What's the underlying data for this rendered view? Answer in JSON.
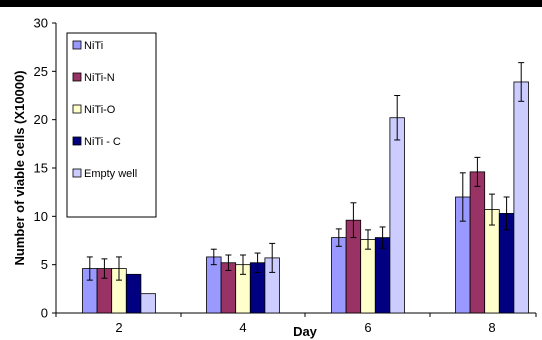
{
  "chart_data": {
    "type": "bar",
    "title": "",
    "xlabel": "Day",
    "ylabel": "Number of viable cells (X10000)",
    "categories": [
      "2",
      "4",
      "6",
      "8"
    ],
    "ylim": [
      0,
      30
    ],
    "yticks": [
      "0",
      "5",
      "10",
      "15",
      "20",
      "25",
      "30"
    ],
    "grid": false,
    "legend_position": "top-left",
    "series": [
      {
        "name": "NiTi",
        "color": "#9999ff",
        "values": [
          4.6,
          5.8,
          7.8,
          12.0
        ],
        "errors": [
          1.2,
          0.8,
          0.9,
          2.5
        ]
      },
      {
        "name": "NiTi-N",
        "color": "#993366",
        "values": [
          4.6,
          5.2,
          9.6,
          14.6
        ],
        "errors": [
          1.0,
          0.8,
          1.8,
          1.5
        ]
      },
      {
        "name": "NiTi-O",
        "color": "#ffffcc",
        "values": [
          4.6,
          5.0,
          7.6,
          10.7
        ],
        "errors": [
          1.2,
          1.0,
          1.0,
          1.6
        ]
      },
      {
        "name": "NiTi - C",
        "color": "#000080",
        "values": [
          4.0,
          5.2,
          7.8,
          10.3
        ],
        "errors": [
          0.0,
          1.0,
          1.1,
          1.7
        ]
      },
      {
        "name": "Empty well",
        "color": "#ccccff",
        "values": [
          2.0,
          5.7,
          20.2,
          23.9
        ],
        "errors": [
          0.0,
          1.5,
          2.3,
          2.0
        ]
      }
    ]
  }
}
